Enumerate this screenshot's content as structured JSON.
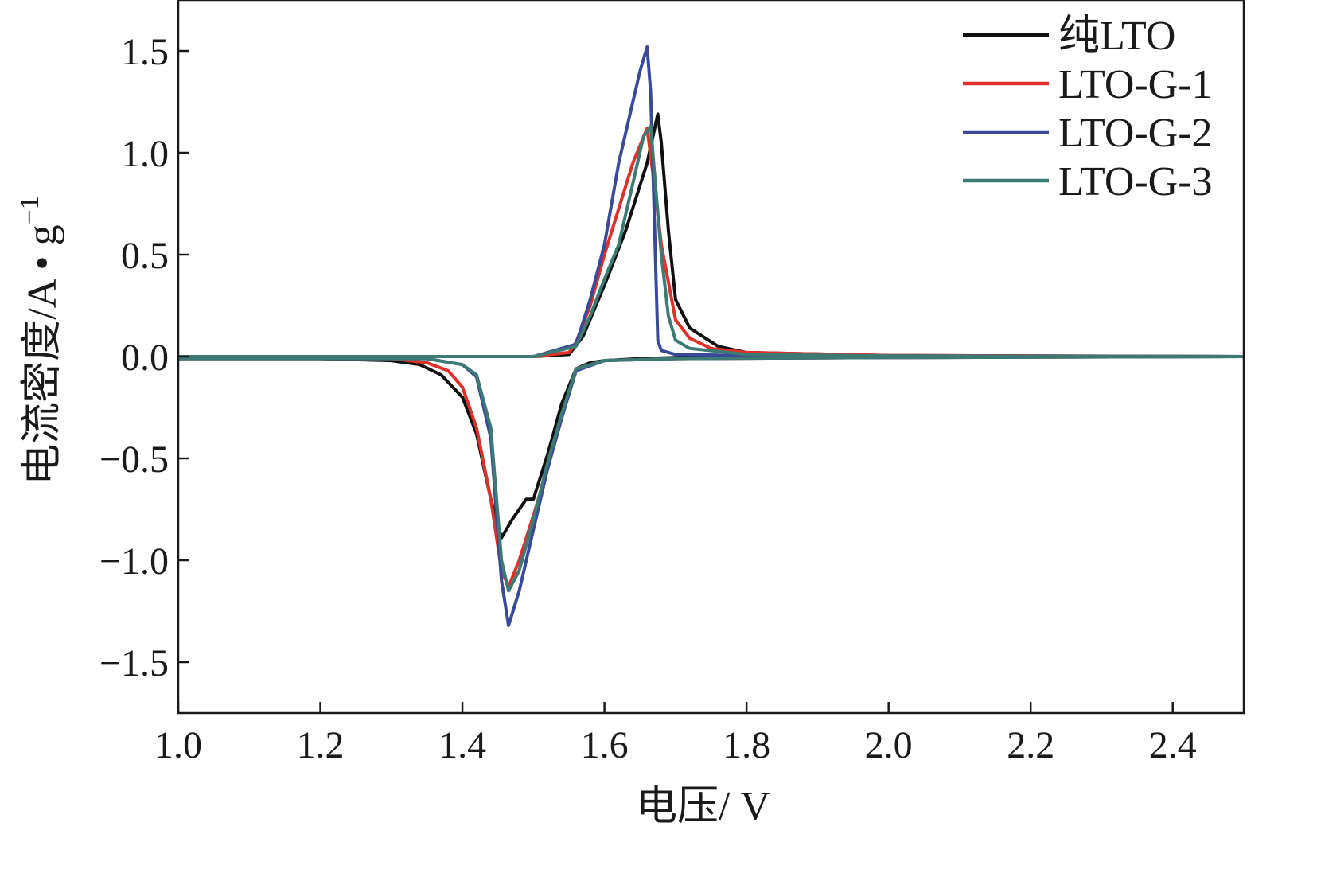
{
  "chart_data": {
    "type": "line",
    "xlabel": "电压/ V",
    "ylabel_main": "电流密度/A • g",
    "ylabel_sup": "−1",
    "xlim": [
      1.0,
      2.5
    ],
    "ylim": [
      -1.75,
      1.75
    ],
    "xticks": [
      1.0,
      1.2,
      1.4,
      1.6,
      1.8,
      2.0,
      2.2,
      2.4
    ],
    "xtick_labels": [
      "1.0",
      "1.2",
      "1.4",
      "1.6",
      "1.8",
      "2.0",
      "2.2",
      "2.4"
    ],
    "yticks": [
      1.5,
      1.0,
      0.5,
      0.0,
      -0.5,
      -1.0,
      -1.5
    ],
    "ytick_labels": [
      "1.5",
      "1.0",
      "0.5",
      "0.0",
      "−0.5",
      "−1.0",
      "−1.5"
    ],
    "grid": false,
    "legend_position": "top-right",
    "series": [
      {
        "name": "纯LTO",
        "color": "#111111",
        "x": [
          1.0,
          1.2,
          1.3,
          1.34,
          1.37,
          1.4,
          1.42,
          1.44,
          1.455,
          1.47,
          1.49,
          1.5,
          1.52,
          1.54,
          1.56,
          1.58,
          1.6,
          1.65,
          1.7,
          1.8,
          2.0,
          2.5,
          2.5,
          2.0,
          1.8,
          1.76,
          1.72,
          1.7,
          1.69,
          1.68,
          1.675,
          1.66,
          1.63,
          1.6,
          1.57,
          1.55,
          1.5,
          1.4,
          1.0
        ],
        "y": [
          -0.01,
          -0.01,
          -0.02,
          -0.04,
          -0.09,
          -0.2,
          -0.38,
          -0.7,
          -0.89,
          -0.8,
          -0.7,
          -0.7,
          -0.48,
          -0.23,
          -0.06,
          -0.03,
          -0.02,
          -0.01,
          -0.005,
          -0.003,
          -0.002,
          0.0,
          0.0,
          0.005,
          0.02,
          0.05,
          0.14,
          0.28,
          0.62,
          1.05,
          1.19,
          0.95,
          0.62,
          0.35,
          0.1,
          0.01,
          0.0,
          0.0,
          0.0
        ]
      },
      {
        "name": "LTO-G-1",
        "color": "#e0302a",
        "x": [
          1.0,
          1.3,
          1.35,
          1.38,
          1.4,
          1.42,
          1.44,
          1.455,
          1.465,
          1.48,
          1.5,
          1.52,
          1.54,
          1.56,
          1.6,
          1.7,
          2.0,
          2.5,
          2.5,
          2.0,
          1.8,
          1.75,
          1.72,
          1.7,
          1.68,
          1.67,
          1.66,
          1.64,
          1.6,
          1.58,
          1.56,
          1.55,
          1.5,
          1.0
        ],
        "y": [
          -0.01,
          -0.01,
          -0.03,
          -0.07,
          -0.15,
          -0.35,
          -0.7,
          -1.05,
          -1.13,
          -1.0,
          -0.78,
          -0.55,
          -0.3,
          -0.06,
          -0.02,
          -0.01,
          -0.005,
          0.0,
          0.0,
          0.005,
          0.02,
          0.04,
          0.09,
          0.18,
          0.55,
          0.85,
          1.12,
          0.95,
          0.5,
          0.25,
          0.07,
          0.02,
          0.0,
          0.0
        ]
      },
      {
        "name": "LTO-G-2",
        "color": "#3a4a9a",
        "x": [
          1.0,
          1.35,
          1.4,
          1.42,
          1.44,
          1.455,
          1.465,
          1.48,
          1.5,
          1.52,
          1.54,
          1.56,
          1.6,
          1.7,
          2.0,
          2.5,
          2.5,
          2.0,
          1.8,
          1.7,
          1.68,
          1.675,
          1.67,
          1.665,
          1.66,
          1.65,
          1.62,
          1.6,
          1.58,
          1.56,
          1.5,
          1.0
        ],
        "y": [
          -0.01,
          -0.01,
          -0.04,
          -0.1,
          -0.4,
          -1.1,
          -1.32,
          -1.15,
          -0.85,
          -0.55,
          -0.3,
          -0.07,
          -0.02,
          -0.01,
          -0.005,
          0.0,
          0.0,
          0.003,
          0.005,
          0.01,
          0.03,
          0.08,
          0.7,
          1.3,
          1.52,
          1.4,
          0.95,
          0.55,
          0.28,
          0.06,
          0.0,
          0.0
        ]
      },
      {
        "name": "LTO-G-3",
        "color": "#3d7a74",
        "x": [
          1.0,
          1.35,
          1.4,
          1.42,
          1.44,
          1.455,
          1.465,
          1.48,
          1.5,
          1.52,
          1.54,
          1.56,
          1.6,
          1.7,
          2.0,
          2.5,
          2.5,
          2.0,
          1.8,
          1.72,
          1.7,
          1.69,
          1.68,
          1.665,
          1.655,
          1.64,
          1.62,
          1.6,
          1.58,
          1.56,
          1.5,
          1.0
        ],
        "y": [
          -0.01,
          -0.01,
          -0.04,
          -0.09,
          -0.35,
          -1.0,
          -1.15,
          -1.05,
          -0.8,
          -0.52,
          -0.28,
          -0.06,
          -0.02,
          -0.01,
          -0.005,
          0.0,
          0.0,
          0.003,
          0.01,
          0.04,
          0.08,
          0.2,
          0.5,
          1.13,
          1.08,
          0.85,
          0.55,
          0.38,
          0.2,
          0.05,
          0.0,
          0.0
        ]
      }
    ]
  }
}
